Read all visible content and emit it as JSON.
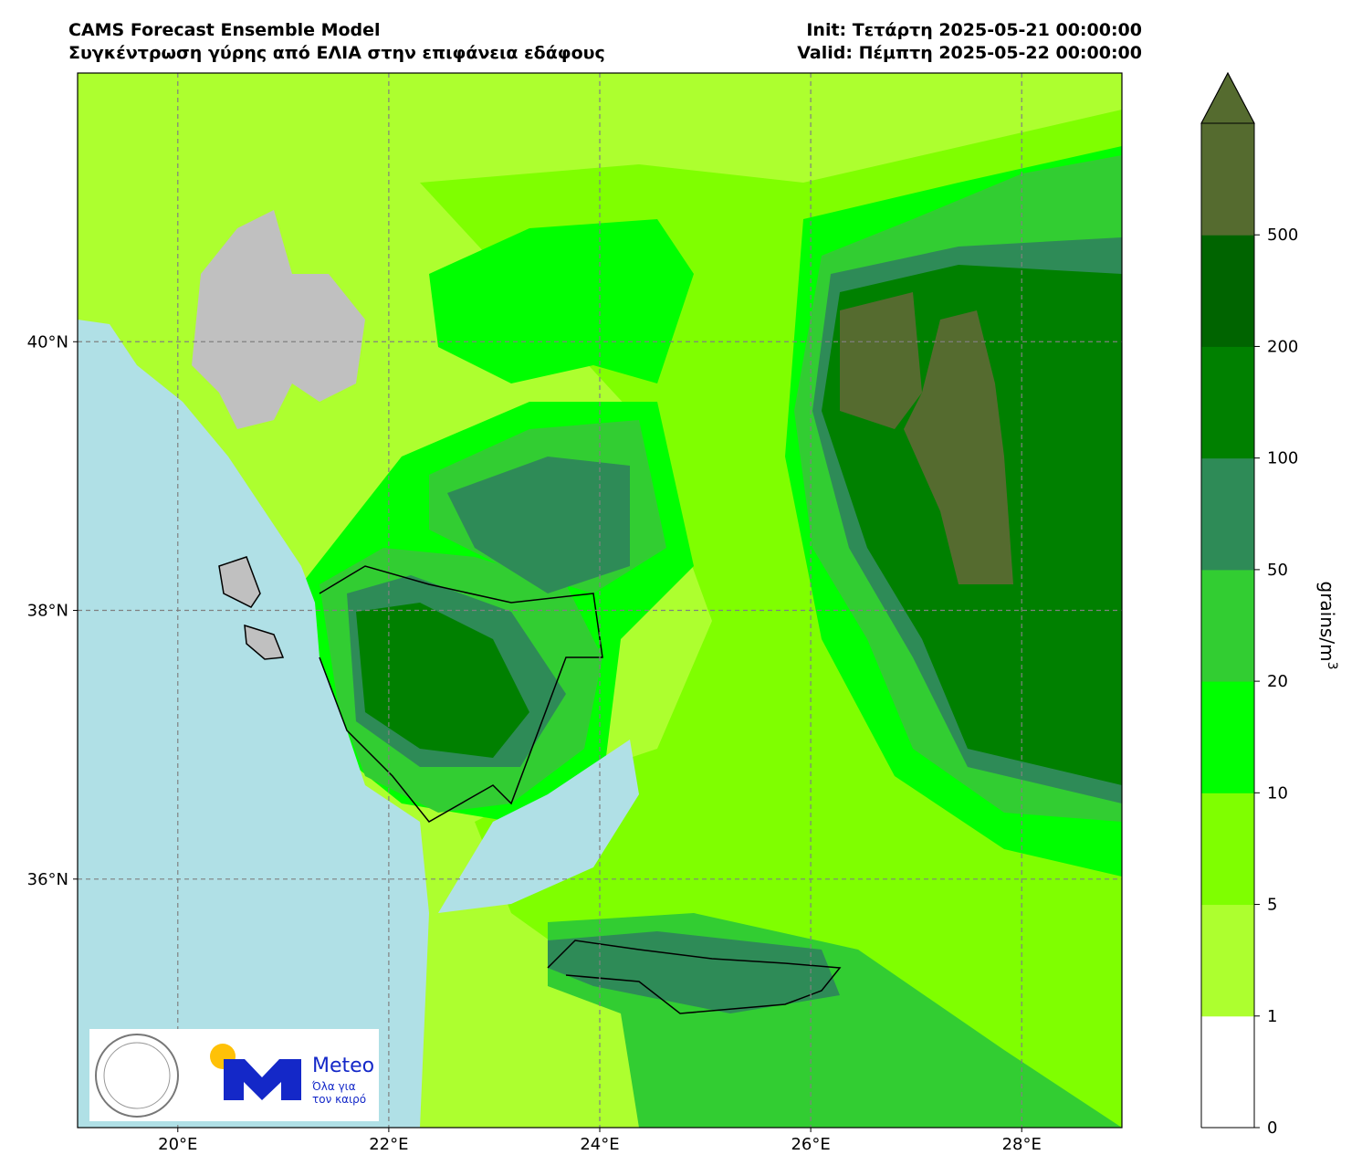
{
  "header": {
    "title": "CAMS Forecast Ensemble Model",
    "subtitle": "Συγκέντρωση γύρης από ΕΛΙΑ στην επιφάνεια εδάφους",
    "init": "Init: Τετάρτη 2025-05-21 00:00:00",
    "valid": "Valid: Πέμπτη 2025-05-22 00:00:00"
  },
  "map": {
    "xlim": [
      19.05,
      28.95
    ],
    "ylim": [
      34.15,
      42.0
    ],
    "xticks": [
      {
        "value": 20,
        "label": "20°E"
      },
      {
        "value": 22,
        "label": "22°E"
      },
      {
        "value": 24,
        "label": "24°E"
      },
      {
        "value": 26,
        "label": "26°E"
      },
      {
        "value": 28,
        "label": "28°E"
      }
    ],
    "yticks": [
      {
        "value": 36,
        "label": "36°N"
      },
      {
        "value": 38,
        "label": "38°N"
      },
      {
        "value": 40,
        "label": "40°N"
      }
    ],
    "grid": true,
    "colorbar": {
      "label": "grains/m",
      "label_sup": "3",
      "levels": [
        0,
        1,
        5,
        10,
        20,
        50,
        100,
        200,
        500
      ],
      "colors": [
        "#ffffff",
        "#adff2f",
        "#7fff00",
        "#00ff00",
        "#32cd32",
        "#2e8b57",
        "#008000",
        "#006400",
        "#556b2f"
      ]
    }
  },
  "logo": {
    "brand": "Meteo",
    "slogan": [
      "Όλα για",
      "τον καιρό"
    ]
  }
}
